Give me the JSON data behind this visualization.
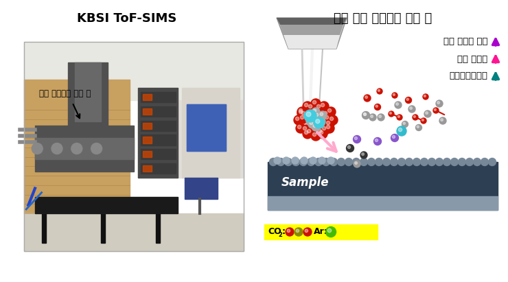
{
  "title_left": "KBSI ToF-SIMS",
  "title_right": "혼합 기체 클러스터 이온 빔",
  "label_left": "기체 클러스터 이온 빔",
  "right_labels": [
    "질량 분석기 감도",
    "공간 분해능",
    "표면가공정밀도"
  ],
  "arrow_colors": [
    "#aa00cc",
    "#ff1493",
    "#008080"
  ],
  "sample_text": "Sample",
  "bg_color": "#ffffff",
  "fig_width": 7.4,
  "fig_height": 4.11,
  "photo_bg": "#c8bfb0",
  "photo_wall": "#c8a878",
  "photo_equipment": "#606060",
  "photo_floor": "#d8d4cc",
  "photo_ceiling": "#e8e8e0",
  "nozzle_colors": [
    "#e0e0e0",
    "#b0b0b0",
    "#808080",
    "#404040"
  ],
  "cluster_red": "#cc1100",
  "cluster_gray": "#aaaaaa",
  "cluster_cyan": "#44ccdd",
  "sample_dark": "#2d3f52",
  "sample_light": "#8899aa",
  "sample_bump": "#778899",
  "legend_bg": "#ffff00",
  "co2_colors": [
    "#cc1100",
    "#888800",
    "#cc1100"
  ],
  "ar_color": "#44bb00",
  "scatter_red": "#cc1100",
  "scatter_gray": "#999999",
  "scatter_purple": "#8855cc",
  "scatter_cyan": "#33bbcc",
  "scatter_dark": "#333333",
  "pink_arrow": "#ffaacc"
}
